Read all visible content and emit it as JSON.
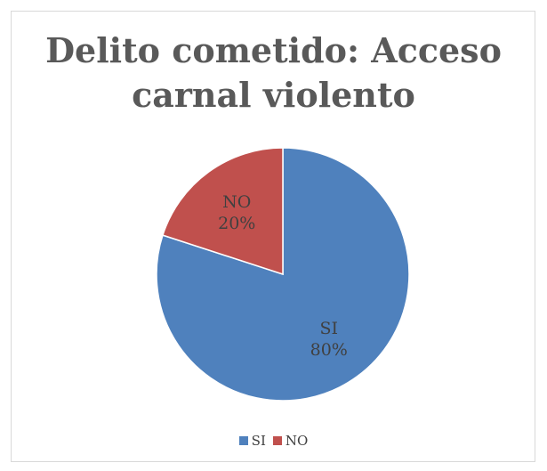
{
  "chart_data": {
    "type": "pie",
    "title": "Delito cometido: Acceso carnal violento",
    "title_lines": [
      "Delito cometido: Acceso",
      "carnal violento"
    ],
    "slices": [
      {
        "name": "SI",
        "value": 80,
        "label": "80%",
        "color": "#4f81bd"
      },
      {
        "name": "NO",
        "value": 20,
        "label": "20%",
        "color": "#c0504d"
      }
    ],
    "start_angle_deg": 0,
    "direction": "clockwise",
    "legend": {
      "placement": "bottom",
      "entries": [
        "SI",
        "NO"
      ]
    }
  }
}
